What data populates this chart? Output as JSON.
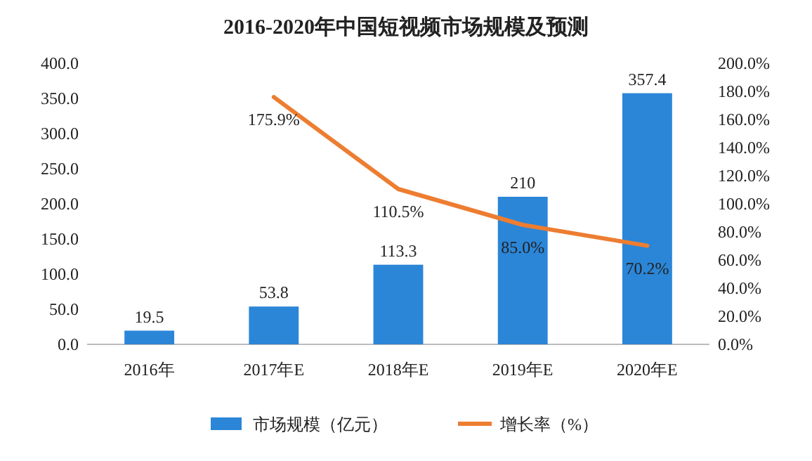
{
  "chart_data": {
    "type": "bar",
    "title": "2016-2020年中国短视频市场规模及预测",
    "categories": [
      "2016年",
      "2017年E",
      "2018年E",
      "2019年E",
      "2020年E"
    ],
    "series": [
      {
        "name": "市场规模（亿元）",
        "color": "#2b86d8",
        "values": [
          19.5,
          53.8,
          113.3,
          210,
          357.4
        ],
        "value_labels": [
          "19.5",
          "53.8",
          "113.3",
          "210",
          "357.4"
        ]
      },
      {
        "name": "增长率（%）",
        "type": "line",
        "axis": "y2",
        "color": "#ed7d31",
        "values": [
          null,
          175.9,
          110.5,
          85.0,
          70.2
        ],
        "value_labels": [
          null,
          "175.9%",
          "110.5%",
          "85.0%",
          "70.2%"
        ]
      }
    ],
    "ylim": [
      0,
      400
    ],
    "yticks": [
      {
        "value": 0,
        "label": "0.0"
      },
      {
        "value": 50,
        "label": "50.0"
      },
      {
        "value": 100,
        "label": "100.0"
      },
      {
        "value": 150,
        "label": "150.0"
      },
      {
        "value": 200,
        "label": "200.0"
      },
      {
        "value": 250,
        "label": "250.0"
      },
      {
        "value": 300,
        "label": "300.0"
      },
      {
        "value": 350,
        "label": "350.0"
      },
      {
        "value": 400,
        "label": "400.0"
      }
    ],
    "y2lim": [
      0,
      200
    ],
    "y2ticks": [
      {
        "value": 0,
        "label": "0.0%"
      },
      {
        "value": 20,
        "label": "20.0%"
      },
      {
        "value": 40,
        "label": "40.0%"
      },
      {
        "value": 60,
        "label": "60.0%"
      },
      {
        "value": 80,
        "label": "80.0%"
      },
      {
        "value": 100,
        "label": "100.0%"
      },
      {
        "value": 120,
        "label": "120.0%"
      },
      {
        "value": 140,
        "label": "140.0%"
      },
      {
        "value": 160,
        "label": "160.0%"
      },
      {
        "value": 180,
        "label": "180.0%"
      },
      {
        "value": 200,
        "label": "200.0%"
      }
    ],
    "legend": "bottom"
  }
}
